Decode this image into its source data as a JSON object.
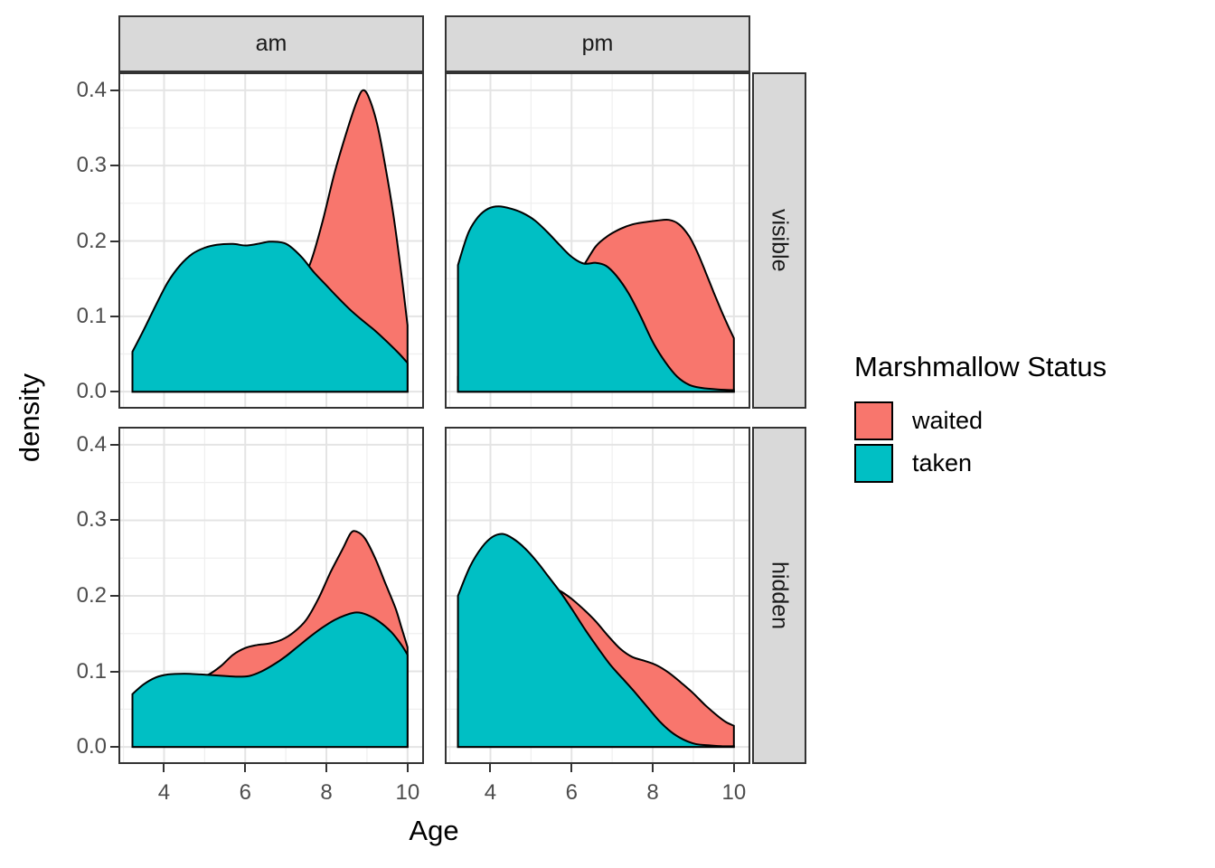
{
  "chart_data": {
    "type": "area",
    "subtype": "faceted-density",
    "xlabel": "Age",
    "ylabel": "density",
    "facet_cols": [
      "am",
      "pm"
    ],
    "facet_rows": [
      "visible",
      "hidden"
    ],
    "x_ticks": [
      4,
      6,
      8,
      10
    ],
    "x_tick_labels": [
      "4",
      "6",
      "8",
      "10"
    ],
    "x_minor_ticks": [
      3,
      5,
      7,
      9
    ],
    "y_ticks": [
      0.0,
      0.1,
      0.2,
      0.3,
      0.4
    ],
    "y_tick_labels": [
      "0.0",
      "0.1",
      "0.2",
      "0.3",
      "0.4"
    ],
    "y_minor_ticks": [
      0.05,
      0.15,
      0.25,
      0.35
    ],
    "x_range": [
      2.92,
      10.36
    ],
    "y_range": [
      -0.0202,
      0.4214
    ],
    "grid": true,
    "legend": {
      "title": "Marshmallow Status",
      "position": "right",
      "entries": [
        {
          "label": "waited",
          "color": "#F8766D"
        },
        {
          "label": "taken",
          "color": "#00BFC4"
        }
      ]
    },
    "panels": [
      {
        "col": "am",
        "row": "visible",
        "series": [
          {
            "name": "waited",
            "color": "#F8766D",
            "points": [
              [
                3.22,
                0.001
              ],
              [
                3.6,
                0.001
              ],
              [
                4.0,
                0.002
              ],
              [
                4.4,
                0.003
              ],
              [
                4.8,
                0.007
              ],
              [
                5.2,
                0.013
              ],
              [
                5.6,
                0.023
              ],
              [
                6.0,
                0.038
              ],
              [
                6.4,
                0.058
              ],
              [
                6.8,
                0.088
              ],
              [
                7.2,
                0.125
              ],
              [
                7.6,
                0.17
              ],
              [
                7.9,
                0.225
              ],
              [
                8.2,
                0.29
              ],
              [
                8.5,
                0.345
              ],
              [
                8.75,
                0.385
              ],
              [
                8.9,
                0.4
              ],
              [
                9.05,
                0.39
              ],
              [
                9.25,
                0.355
              ],
              [
                9.45,
                0.3
              ],
              [
                9.65,
                0.235
              ],
              [
                9.85,
                0.155
              ],
              [
                10.0,
                0.088
              ]
            ]
          },
          {
            "name": "taken",
            "color": "#00BFC4",
            "points": [
              [
                3.22,
                0.053
              ],
              [
                3.5,
                0.082
              ],
              [
                3.8,
                0.115
              ],
              [
                4.1,
                0.146
              ],
              [
                4.4,
                0.168
              ],
              [
                4.7,
                0.183
              ],
              [
                5.0,
                0.191
              ],
              [
                5.3,
                0.195
              ],
              [
                5.7,
                0.196
              ],
              [
                6.0,
                0.194
              ],
              [
                6.3,
                0.196
              ],
              [
                6.6,
                0.199
              ],
              [
                6.9,
                0.198
              ],
              [
                7.1,
                0.193
              ],
              [
                7.4,
                0.178
              ],
              [
                7.7,
                0.158
              ],
              [
                8.0,
                0.141
              ],
              [
                8.3,
                0.124
              ],
              [
                8.6,
                0.108
              ],
              [
                8.9,
                0.094
              ],
              [
                9.2,
                0.081
              ],
              [
                9.5,
                0.066
              ],
              [
                9.8,
                0.05
              ],
              [
                10.0,
                0.038
              ]
            ]
          }
        ]
      },
      {
        "col": "pm",
        "row": "visible",
        "series": [
          {
            "name": "waited",
            "color": "#F8766D",
            "points": [
              [
                3.2,
                0.02
              ],
              [
                3.6,
                0.03
              ],
              [
                4.0,
                0.044
              ],
              [
                4.4,
                0.06
              ],
              [
                4.8,
                0.078
              ],
              [
                5.2,
                0.099
              ],
              [
                5.6,
                0.124
              ],
              [
                6.0,
                0.15
              ],
              [
                6.3,
                0.168
              ],
              [
                6.6,
                0.193
              ],
              [
                6.9,
                0.207
              ],
              [
                7.2,
                0.216
              ],
              [
                7.5,
                0.222
              ],
              [
                7.8,
                0.225
              ],
              [
                8.1,
                0.227
              ],
              [
                8.4,
                0.228
              ],
              [
                8.65,
                0.222
              ],
              [
                8.9,
                0.206
              ],
              [
                9.1,
                0.185
              ],
              [
                9.3,
                0.159
              ],
              [
                9.5,
                0.132
              ],
              [
                9.7,
                0.106
              ],
              [
                9.85,
                0.088
              ],
              [
                10.0,
                0.071
              ]
            ]
          },
          {
            "name": "taken",
            "color": "#00BFC4",
            "points": [
              [
                3.2,
                0.168
              ],
              [
                3.45,
                0.21
              ],
              [
                3.7,
                0.232
              ],
              [
                3.95,
                0.243
              ],
              [
                4.2,
                0.246
              ],
              [
                4.5,
                0.243
              ],
              [
                4.8,
                0.237
              ],
              [
                5.1,
                0.227
              ],
              [
                5.4,
                0.212
              ],
              [
                5.7,
                0.195
              ],
              [
                6.0,
                0.179
              ],
              [
                6.3,
                0.17
              ],
              [
                6.6,
                0.171
              ],
              [
                6.85,
                0.167
              ],
              [
                7.1,
                0.154
              ],
              [
                7.4,
                0.131
              ],
              [
                7.7,
                0.1
              ],
              [
                8.0,
                0.066
              ],
              [
                8.3,
                0.04
              ],
              [
                8.6,
                0.02
              ],
              [
                8.9,
                0.009
              ],
              [
                9.2,
                0.005
              ],
              [
                9.6,
                0.003
              ],
              [
                10.0,
                0.002
              ]
            ]
          }
        ]
      },
      {
        "col": "am",
        "row": "hidden",
        "series": [
          {
            "name": "waited",
            "color": "#F8766D",
            "points": [
              [
                3.25,
                0.045
              ],
              [
                3.6,
                0.062
              ],
              [
                4.0,
                0.077
              ],
              [
                4.4,
                0.086
              ],
              [
                4.8,
                0.092
              ],
              [
                5.1,
                0.096
              ],
              [
                5.4,
                0.107
              ],
              [
                5.7,
                0.122
              ],
              [
                6.0,
                0.131
              ],
              [
                6.3,
                0.135
              ],
              [
                6.6,
                0.137
              ],
              [
                6.9,
                0.142
              ],
              [
                7.2,
                0.152
              ],
              [
                7.5,
                0.168
              ],
              [
                7.8,
                0.196
              ],
              [
                8.1,
                0.231
              ],
              [
                8.4,
                0.262
              ],
              [
                8.6,
                0.283
              ],
              [
                8.75,
                0.285
              ],
              [
                8.95,
                0.276
              ],
              [
                9.2,
                0.25
              ],
              [
                9.45,
                0.217
              ],
              [
                9.7,
                0.184
              ],
              [
                9.85,
                0.158
              ],
              [
                10.0,
                0.132
              ]
            ]
          },
          {
            "name": "taken",
            "color": "#00BFC4",
            "points": [
              [
                3.22,
                0.07
              ],
              [
                3.5,
                0.083
              ],
              [
                3.8,
                0.092
              ],
              [
                4.1,
                0.096
              ],
              [
                4.5,
                0.097
              ],
              [
                4.9,
                0.096
              ],
              [
                5.2,
                0.095
              ],
              [
                5.5,
                0.094
              ],
              [
                5.8,
                0.093
              ],
              [
                6.1,
                0.094
              ],
              [
                6.4,
                0.1
              ],
              [
                6.7,
                0.109
              ],
              [
                7.0,
                0.12
              ],
              [
                7.3,
                0.133
              ],
              [
                7.6,
                0.146
              ],
              [
                7.9,
                0.158
              ],
              [
                8.2,
                0.168
              ],
              [
                8.5,
                0.175
              ],
              [
                8.75,
                0.178
              ],
              [
                9.0,
                0.175
              ],
              [
                9.3,
                0.166
              ],
              [
                9.6,
                0.152
              ],
              [
                9.85,
                0.135
              ],
              [
                10.0,
                0.122
              ]
            ]
          }
        ]
      },
      {
        "col": "pm",
        "row": "hidden",
        "series": [
          {
            "name": "waited",
            "color": "#F8766D",
            "points": [
              [
                3.2,
                0.09
              ],
              [
                3.6,
                0.118
              ],
              [
                4.0,
                0.147
              ],
              [
                4.4,
                0.175
              ],
              [
                4.8,
                0.196
              ],
              [
                5.1,
                0.207
              ],
              [
                5.4,
                0.212
              ],
              [
                5.7,
                0.207
              ],
              [
                6.0,
                0.196
              ],
              [
                6.3,
                0.182
              ],
              [
                6.6,
                0.166
              ],
              [
                6.9,
                0.147
              ],
              [
                7.2,
                0.13
              ],
              [
                7.5,
                0.119
              ],
              [
                7.8,
                0.114
              ],
              [
                8.1,
                0.108
              ],
              [
                8.4,
                0.098
              ],
              [
                8.7,
                0.085
              ],
              [
                9.0,
                0.071
              ],
              [
                9.3,
                0.055
              ],
              [
                9.6,
                0.041
              ],
              [
                9.8,
                0.033
              ],
              [
                10.0,
                0.028
              ]
            ]
          },
          {
            "name": "taken",
            "color": "#00BFC4",
            "points": [
              [
                3.2,
                0.2
              ],
              [
                3.5,
                0.239
              ],
              [
                3.8,
                0.265
              ],
              [
                4.05,
                0.278
              ],
              [
                4.3,
                0.282
              ],
              [
                4.55,
                0.276
              ],
              [
                4.85,
                0.263
              ],
              [
                5.15,
                0.245
              ],
              [
                5.45,
                0.224
              ],
              [
                5.75,
                0.203
              ],
              [
                6.05,
                0.179
              ],
              [
                6.35,
                0.154
              ],
              [
                6.65,
                0.131
              ],
              [
                6.95,
                0.109
              ],
              [
                7.25,
                0.091
              ],
              [
                7.55,
                0.073
              ],
              [
                7.85,
                0.054
              ],
              [
                8.15,
                0.035
              ],
              [
                8.45,
                0.02
              ],
              [
                8.75,
                0.01
              ],
              [
                9.05,
                0.004
              ],
              [
                9.4,
                0.002
              ],
              [
                9.7,
                0.001
              ],
              [
                10.0,
                0.001
              ]
            ]
          }
        ]
      }
    ],
    "style": {
      "area_outline_color": "#000000",
      "strip_fill": "#D9D9D9",
      "panel_border_color": "#333333",
      "grid_major_color": "#E4E4E4",
      "grid_minor_color": "#EFEFEF",
      "tick_text_color": "#4D4D4D"
    }
  }
}
